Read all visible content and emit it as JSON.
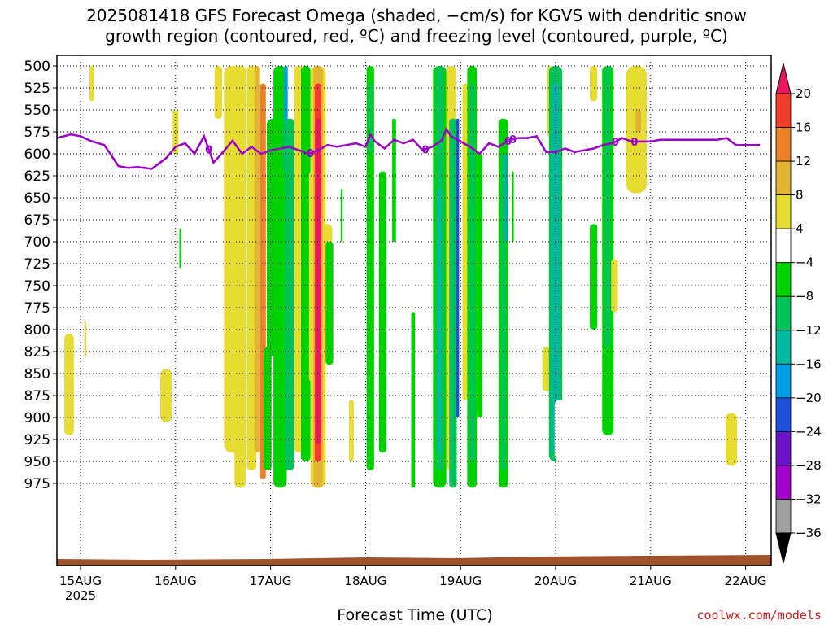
{
  "chart_data": {
    "type": "heatmap",
    "title_line1": "2025081418 GFS Forecast Omega (shaded, −cm/s) for KGVS with dendritic snow",
    "title_line2": "growth region (contoured, red, ºC) and freezing level (contoured, purple, ºC)",
    "xlabel": "Forecast Time (UTC)",
    "credit": "coolwx.com/models",
    "y_axis": {
      "scale": "pressure",
      "ticks": [
        500,
        525,
        550,
        575,
        600,
        625,
        650,
        675,
        700,
        725,
        750,
        775,
        800,
        825,
        850,
        875,
        900,
        925,
        950,
        975
      ]
    },
    "x_axis": {
      "ticks": [
        "15AUG",
        "16AUG",
        "17AUG",
        "18AUG",
        "19AUG",
        "20AUG",
        "21AUG",
        "22AUG"
      ],
      "sub_label": "2025"
    },
    "grid": true,
    "colorbar": {
      "labels": [
        "20",
        "16",
        "12",
        "8",
        "4",
        "−4",
        "−8",
        "−12",
        "−16",
        "−20",
        "−24",
        "−28",
        "−32",
        "−36"
      ],
      "colors": [
        "#e6195f",
        "#f03c28",
        "#ec8228",
        "#e1b432",
        "#e6dc32",
        "#ffffff",
        "#00d200",
        "#00c35a",
        "#00b9a0",
        "#009ee6",
        "#1e50dc",
        "#6a14c8",
        "#a000c8",
        "#a0a0a0",
        "#000000"
      ]
    },
    "omega_areas": [
      {
        "t": 0.12,
        "p1": 500,
        "p2": 540,
        "w": 0.05,
        "c": 4
      },
      {
        "t": -0.12,
        "p1": 805,
        "p2": 920,
        "w": 0.1,
        "c": 4
      },
      {
        "t": 0.05,
        "p1": 790,
        "p2": 830,
        "w": 0.02,
        "c": 4
      },
      {
        "t": 0.9,
        "p1": 845,
        "p2": 905,
        "w": 0.12,
        "c": 4
      },
      {
        "t": 1.0,
        "p1": 550,
        "p2": 600,
        "w": 0.06,
        "c": 4
      },
      {
        "t": 1.05,
        "p1": 685,
        "p2": 730,
        "w": 0.02,
        "c": 6
      },
      {
        "t": 1.45,
        "p1": 500,
        "p2": 560,
        "w": 0.08,
        "c": 4
      },
      {
        "t": 1.55,
        "p1": 590,
        "p2": 660,
        "w": 0.08,
        "c": 4
      },
      {
        "t": 1.6,
        "p1": 500,
        "p2": 940,
        "w": 0.18,
        "c": 4
      },
      {
        "t": 1.68,
        "p1": 500,
        "p2": 980,
        "w": 0.12,
        "c": 4
      },
      {
        "t": 1.8,
        "p1": 500,
        "p2": 960,
        "w": 0.1,
        "c": 4
      },
      {
        "t": 1.86,
        "p1": 500,
        "p2": 940,
        "w": 0.06,
        "c": 3
      },
      {
        "t": 1.92,
        "p1": 520,
        "p2": 970,
        "w": 0.06,
        "c": 2
      },
      {
        "t": 1.97,
        "p1": 820,
        "p2": 960,
        "w": 0.08,
        "c": 6
      },
      {
        "t": 2.03,
        "p1": 560,
        "p2": 830,
        "w": 0.14,
        "c": 6
      },
      {
        "t": 2.1,
        "p1": 500,
        "p2": 980,
        "w": 0.14,
        "c": 6
      },
      {
        "t": 2.16,
        "p1": 500,
        "p2": 620,
        "w": 0.04,
        "c": 9
      },
      {
        "t": 2.2,
        "p1": 560,
        "p2": 960,
        "w": 0.1,
        "c": 7
      },
      {
        "t": 2.3,
        "p1": 500,
        "p2": 940,
        "w": 0.1,
        "c": 4
      },
      {
        "t": 2.37,
        "p1": 500,
        "p2": 950,
        "w": 0.1,
        "c": 6
      },
      {
        "t": 2.45,
        "p1": 620,
        "p2": 860,
        "w": 0.09,
        "c": 4
      },
      {
        "t": 2.5,
        "p1": 500,
        "p2": 980,
        "w": 0.16,
        "c": 4
      },
      {
        "t": 2.5,
        "p1": 500,
        "p2": 980,
        "w": 0.1,
        "c": 3
      },
      {
        "t": 2.5,
        "p1": 520,
        "p2": 950,
        "w": 0.07,
        "c": 1
      },
      {
        "t": 2.5,
        "p1": 560,
        "p2": 930,
        "w": 0.05,
        "c": 0
      },
      {
        "t": 2.6,
        "p1": 680,
        "p2": 830,
        "w": 0.1,
        "c": 4
      },
      {
        "t": 2.62,
        "p1": 700,
        "p2": 840,
        "w": 0.08,
        "c": 6
      },
      {
        "t": 2.75,
        "p1": 640,
        "p2": 700,
        "w": 0.02,
        "c": 6
      },
      {
        "t": 2.85,
        "p1": 880,
        "p2": 950,
        "w": 0.05,
        "c": 4
      },
      {
        "t": 3.05,
        "p1": 500,
        "p2": 960,
        "w": 0.08,
        "c": 6
      },
      {
        "t": 3.05,
        "p1": 520,
        "p2": 600,
        "w": 0.04,
        "c": 7
      },
      {
        "t": 3.18,
        "p1": 620,
        "p2": 940,
        "w": 0.08,
        "c": 6
      },
      {
        "t": 3.3,
        "p1": 560,
        "p2": 700,
        "w": 0.04,
        "c": 6
      },
      {
        "t": 3.5,
        "p1": 780,
        "p2": 980,
        "w": 0.04,
        "c": 6
      },
      {
        "t": 3.78,
        "p1": 500,
        "p2": 980,
        "w": 0.14,
        "c": 6
      },
      {
        "t": 3.78,
        "p1": 500,
        "p2": 960,
        "w": 0.08,
        "c": 7
      },
      {
        "t": 3.78,
        "p1": 640,
        "p2": 940,
        "w": 0.04,
        "c": 8
      },
      {
        "t": 3.9,
        "p1": 500,
        "p2": 960,
        "w": 0.1,
        "c": 4
      },
      {
        "t": 3.92,
        "p1": 560,
        "p2": 980,
        "w": 0.08,
        "c": 7
      },
      {
        "t": 3.97,
        "p1": 560,
        "p2": 900,
        "w": 0.03,
        "c": 10
      },
      {
        "t": 4.05,
        "p1": 520,
        "p2": 880,
        "w": 0.06,
        "c": 4
      },
      {
        "t": 4.12,
        "p1": 500,
        "p2": 980,
        "w": 0.1,
        "c": 6
      },
      {
        "t": 4.12,
        "p1": 520,
        "p2": 950,
        "w": 0.06,
        "c": 7
      },
      {
        "t": 4.2,
        "p1": 600,
        "p2": 900,
        "w": 0.06,
        "c": 6
      },
      {
        "t": 4.45,
        "p1": 560,
        "p2": 980,
        "w": 0.1,
        "c": 6
      },
      {
        "t": 4.45,
        "p1": 600,
        "p2": 960,
        "w": 0.05,
        "c": 7
      },
      {
        "t": 4.48,
        "p1": 600,
        "p2": 700,
        "w": 0.02,
        "c": 9
      },
      {
        "t": 4.55,
        "p1": 620,
        "p2": 700,
        "w": 0.02,
        "c": 6
      },
      {
        "t": 4.95,
        "p1": 500,
        "p2": 580,
        "w": 0.09,
        "c": 4
      },
      {
        "t": 4.9,
        "p1": 820,
        "p2": 870,
        "w": 0.08,
        "c": 4
      },
      {
        "t": 5.0,
        "p1": 500,
        "p2": 950,
        "w": 0.14,
        "c": 7
      },
      {
        "t": 5.0,
        "p1": 520,
        "p2": 940,
        "w": 0.08,
        "c": 8
      },
      {
        "t": 5.05,
        "p1": 880,
        "p2": 950,
        "w": 0.12,
        "c": 5
      },
      {
        "t": 5.14,
        "p1": 820,
        "p2": 940,
        "w": 0.08,
        "c": 5
      },
      {
        "t": 5.4,
        "p1": 500,
        "p2": 540,
        "w": 0.08,
        "c": 4
      },
      {
        "t": 5.35,
        "p1": 600,
        "p2": 740,
        "w": 0.08,
        "c": 5
      },
      {
        "t": 5.4,
        "p1": 680,
        "p2": 800,
        "w": 0.08,
        "c": 6
      },
      {
        "t": 5.55,
        "p1": 500,
        "p2": 920,
        "w": 0.12,
        "c": 6
      },
      {
        "t": 5.55,
        "p1": 500,
        "p2": 820,
        "w": 0.06,
        "c": 7
      },
      {
        "t": 5.62,
        "p1": 720,
        "p2": 780,
        "w": 0.07,
        "c": 4
      },
      {
        "t": 5.85,
        "p1": 500,
        "p2": 645,
        "w": 0.22,
        "c": 4
      },
      {
        "t": 5.87,
        "p1": 550,
        "p2": 575,
        "w": 0.06,
        "c": 3
      },
      {
        "t": 6.38,
        "p1": 695,
        "p2": 830,
        "w": 0.1,
        "c": 5
      },
      {
        "t": 6.85,
        "p1": 500,
        "p2": 505,
        "w": 0.1,
        "c": 5
      },
      {
        "t": 6.85,
        "p1": 895,
        "p2": 955,
        "w": 0.12,
        "c": 4
      }
    ],
    "freezing_level": {
      "label": "0",
      "t": [
        -0.25,
        -0.1,
        0.0,
        0.1,
        0.25,
        0.4,
        0.5,
        0.6,
        0.75,
        0.9,
        1.0,
        1.1,
        1.2,
        1.3,
        1.4,
        1.5,
        1.6,
        1.7,
        1.8,
        1.9,
        2.0,
        2.1,
        2.2,
        2.3,
        2.4,
        2.5,
        2.6,
        2.7,
        2.8,
        2.9,
        3.0,
        3.05,
        3.1,
        3.2,
        3.3,
        3.4,
        3.5,
        3.6,
        3.7,
        3.8,
        3.85,
        3.9,
        4.0,
        4.1,
        4.2,
        4.3,
        4.4,
        4.5,
        4.6,
        4.7,
        4.8,
        4.9,
        5.0,
        5.1,
        5.2,
        5.3,
        5.4,
        5.5,
        5.6,
        5.7,
        5.8,
        5.9,
        6.0,
        6.1,
        6.2,
        6.3,
        6.4,
        6.5,
        6.6,
        6.7,
        6.8,
        6.9,
        7.0,
        7.15
      ],
      "p": [
        582,
        578,
        580,
        585,
        590,
        614,
        616,
        615,
        617,
        605,
        592,
        588,
        600,
        580,
        610,
        598,
        585,
        600,
        592,
        600,
        596,
        594,
        592,
        596,
        600,
        596,
        590,
        592,
        590,
        588,
        592,
        578,
        586,
        594,
        584,
        588,
        584,
        596,
        592,
        585,
        572,
        580,
        586,
        592,
        600,
        588,
        592,
        585,
        582,
        582,
        580,
        598,
        598,
        594,
        598,
        596,
        594,
        590,
        588,
        582,
        586,
        586,
        586,
        584,
        584,
        584,
        584,
        584,
        584,
        584,
        582,
        590,
        590,
        590
      ]
    },
    "terrain_color": "#a0522d"
  }
}
